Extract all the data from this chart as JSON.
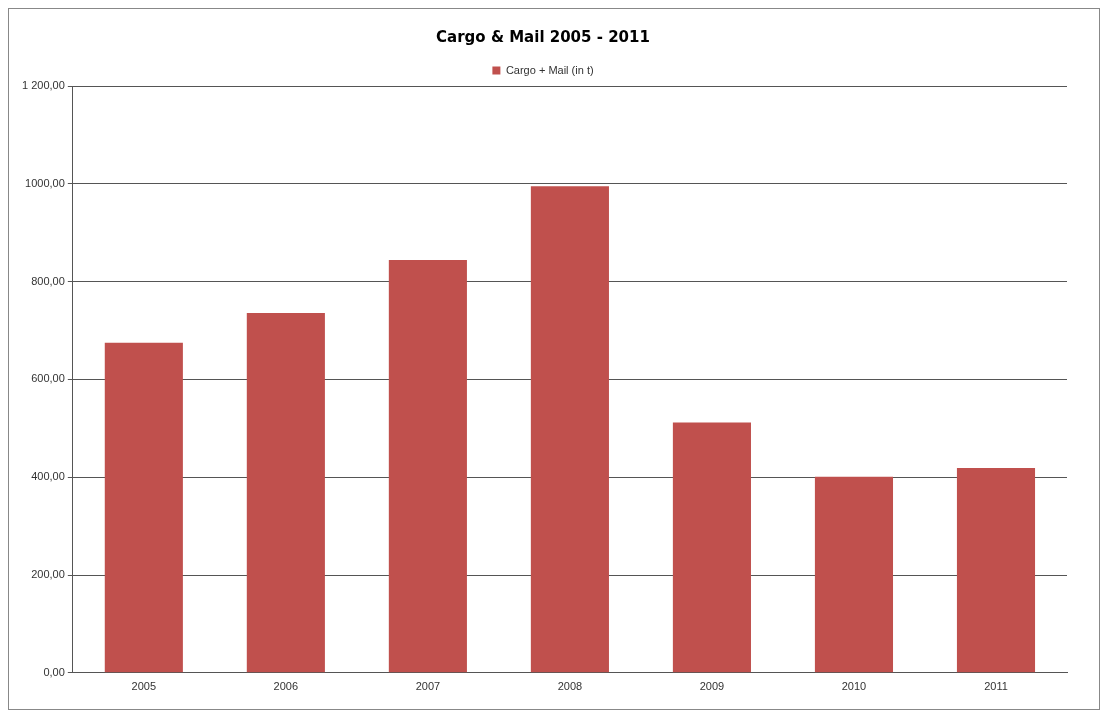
{
  "chart_data": {
    "type": "bar",
    "title": "Cargo & Mail 2005 - 2011",
    "categories": [
      "2005",
      "2006",
      "2007",
      "2008",
      "2009",
      "2010",
      "2011"
    ],
    "series": [
      {
        "name": "Cargo + Mail (in t)",
        "color": "#c0504d",
        "values": [
          675,
          736,
          844,
          995,
          512,
          401,
          419
        ]
      }
    ],
    "ylim": [
      0,
      1200
    ],
    "yticks": [
      {
        "value": 0,
        "label": "0,00"
      },
      {
        "value": 200,
        "label": "200,00"
      },
      {
        "value": 400,
        "label": "400,00"
      },
      {
        "value": 600,
        "label": "600,00"
      },
      {
        "value": 800,
        "label": "800,00"
      },
      {
        "value": 1000,
        "label": "1000,00"
      },
      {
        "value": 1200,
        "label": "1 200,00"
      }
    ],
    "grid": "y",
    "legend": "top"
  }
}
